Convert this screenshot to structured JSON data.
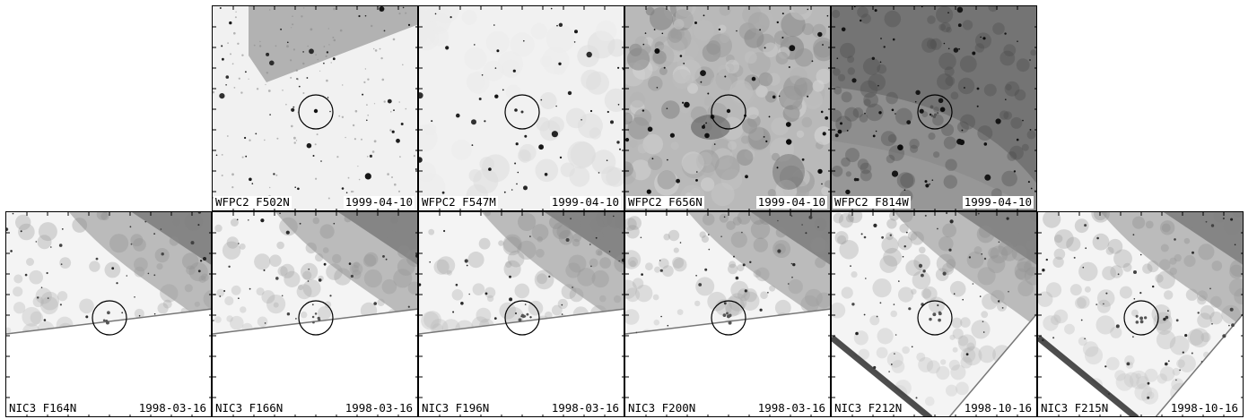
{
  "figure": {
    "rows": [
      {
        "name": "wfpc2",
        "panels": [
          {
            "instrument": "WFPC2",
            "filter": "F502N",
            "date": "1999-04-10",
            "texture": "light-field-with-dark-wedge",
            "brightness": "light",
            "circled_source": "single-point"
          },
          {
            "instrument": "WFPC2",
            "filter": "F547M",
            "date": "1999-04-10",
            "texture": "light-field",
            "brightness": "light",
            "circled_source": "double-point"
          },
          {
            "instrument": "WFPC2",
            "filter": "F656N",
            "date": "1999-04-10",
            "texture": "mottled-nebular-emission",
            "brightness": "medium",
            "circled_source": "single-point"
          },
          {
            "instrument": "WFPC2",
            "filter": "F814W",
            "date": "1999-04-10",
            "texture": "dark-gradient-nebula",
            "brightness": "dark",
            "circled_source": "faint-cluster"
          }
        ]
      },
      {
        "name": "nic3",
        "panels": [
          {
            "instrument": "NIC3",
            "filter": "F164N",
            "date": "1998-03-16",
            "texture": "gradient-with-blank-lower-region",
            "edge": "shallow-diagonal",
            "circled_source": "faint-cluster"
          },
          {
            "instrument": "NIC3",
            "filter": "F166N",
            "date": "1998-03-16",
            "texture": "gradient-with-blank-lower-region",
            "edge": "shallow-diagonal",
            "circled_source": "faint-cluster"
          },
          {
            "instrument": "NIC3",
            "filter": "F196N",
            "date": "1998-03-16",
            "texture": "gradient-with-blank-lower-region",
            "edge": "shallow-diagonal",
            "circled_source": "faint-cluster"
          },
          {
            "instrument": "NIC3",
            "filter": "F200N",
            "date": "1998-03-16",
            "texture": "gradient-with-blank-lower-region",
            "edge": "shallow-diagonal",
            "circled_source": "faint-cluster"
          },
          {
            "instrument": "NIC3",
            "filter": "F212N",
            "date": "1998-10-16",
            "texture": "gradient-with-blank-wedge",
            "edge": "steep-diagonal",
            "circled_source": "faint-cluster"
          },
          {
            "instrument": "NIC3",
            "filter": "F215N",
            "date": "1998-10-16",
            "texture": "gradient-with-blank-wedge",
            "edge": "steep-diagonal",
            "circled_source": "faint-cluster"
          }
        ]
      }
    ],
    "colors": {
      "frame": "#000000",
      "label_bg": "#ffffff",
      "label_text": "#000000",
      "marker_circle": "#000000"
    }
  }
}
